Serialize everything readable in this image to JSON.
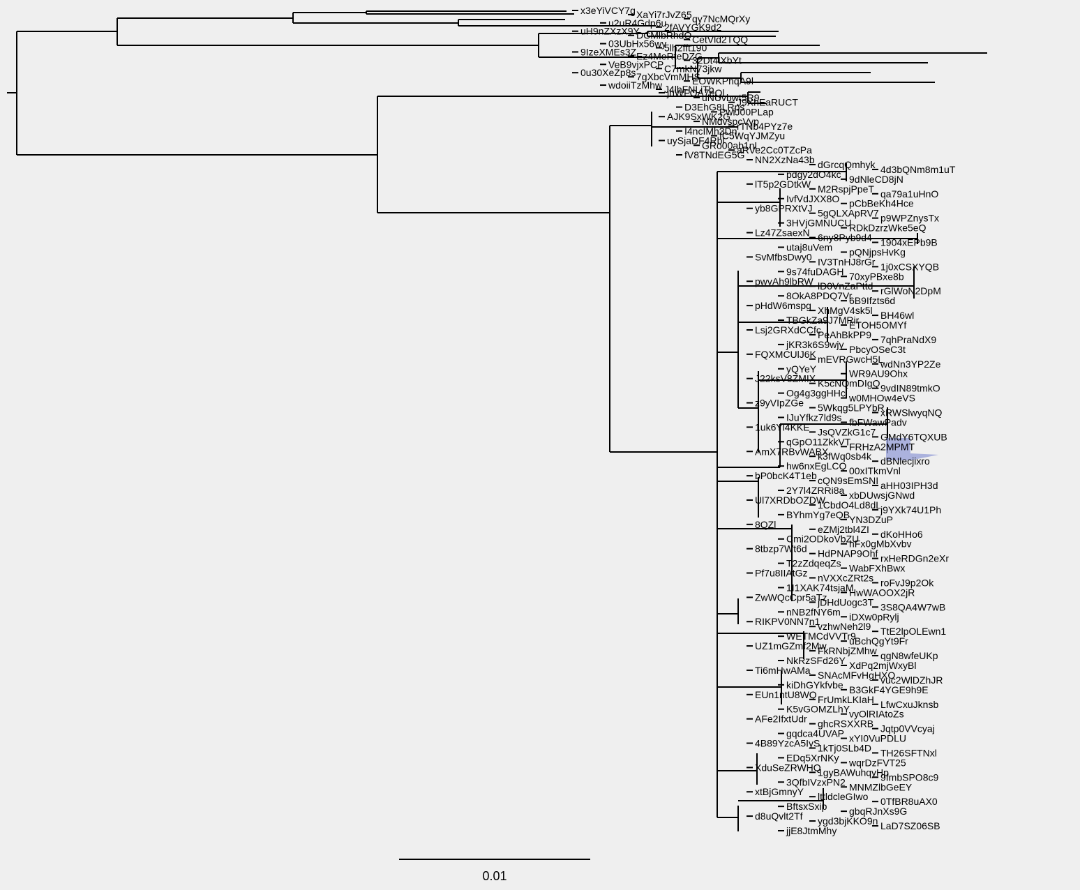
{
  "tree": {
    "scale_label": "0.01",
    "highlight_color": "#9aa3d8",
    "top_clade_labels": [
      "x3eYiVCY7g",
      "XaYi7rJvZ65",
      "qy7NcMQrXy",
      "u2uR4Gdp6u",
      "2fAVYGK9d2",
      "uH9nZXzX9Y",
      "DCMlbRhdQ",
      "CetVld2TQQ",
      "03UbHx56wy",
      "5lh2fft190",
      "9IzeXMEs3Z",
      "Ez4MeRteDZG",
      "32Dt4lXbYt",
      "VeB9vjxPCP",
      "C7mkN73jkw",
      "0u30XeZp8s",
      "7gXbcVmMHS",
      "EOWKPhqA9l",
      "wdoiiTzMhw",
      "J4lhFNLiTb"
    ],
    "middle_labels": [
      "jhWFQA7eQl",
      "uNUvbwt5R9",
      "J9XhEaRUCT",
      "D3EhG8LRps",
      "PwiJ00PLap",
      "AJK9SxWK2G",
      "NMdvspcVyp",
      "rTNb4PYz7e",
      "I4ncIMh3Dn",
      "fC5WqYJMZyu",
      "uySjaDF4Rbl",
      "GRo00ab1nL",
      "aRVe2Cc0TZcPa",
      "fV8TNdEG5G"
    ],
    "lower_labels": [
      "NN2XzNa43b",
      "dGrcqQmhyk",
      "4d3bQNm8m1uT",
      "pdgy2dO4kc",
      "9dNleCD8jN",
      "lT5p2GDtkW",
      "M2RspjPpeT",
      "qa79a1uHnO",
      "IvfVdJXX8O",
      "pCbBeKh4Hce",
      "yb8GPRXtVJ",
      "5gQLXApRV7",
      "p9WPZnysTx",
      "3HVjGMNUCU",
      "RDkDzrzWke5eQ",
      "Lz47ZsaexN",
      "6ny8Pyb9d4",
      "1904xEPb9B",
      "utaj8uVem",
      "pQNjpsHvKg",
      "SvMfbsDwy0",
      "IV3TnHJ8rGr",
      "1j0xCSXYQB",
      "9s74fuDAGH",
      "70xyPBxe8b",
      "pwvAh9lbRW",
      "lD0VnZaPttd",
      "rGlWoN2DpM",
      "8OkA8PDQ7Vr",
      "6B9Ifzts6d",
      "pHdW6mspg",
      "XhMgV4sk5l",
      "BH46wl",
      "TBGkZa9J7MRir",
      "ETOH5OMYf",
      "Lsj2GRXdCCfc",
      "PeAhBkPP9",
      "7qhPraNdX9",
      "jKR3k6S9wjy",
      "PbcyOSeC3t",
      "FQXMCUlJ6K",
      "mEVRGwcH5L",
      "wdNn3YP2Ze",
      "yQYeY",
      "WR9AU9Ohx",
      "J22ksV8ZMIX",
      "K5cNQmDIgQ",
      "9vdIN89tmkO",
      "Og4g3ggHHc",
      "w0MHOw4eVS",
      "z9yVIpZGe",
      "5Wkqg5LPYbR",
      "xRWSlwyqNQ",
      "IJuYfkz7ld9s",
      "fbFWawPadv",
      "1uk6Yl4KKE",
      "JsQVZkG1c7",
      "GMdY6TQXUB",
      "qGpO11ZkkVT",
      "FRHzA2MPMT",
      "AmX7RBvWABX",
      "k3fWq0sb4k",
      "dBNlecjixro",
      "hw6nxEgLCQ",
      "00xITkmVnl",
      "bP0bcK4T1eb",
      "cQN9sEmSNI",
      "aHH03IPH3d",
      "2Y7l4ZRRi8a",
      "xbDUwsjGNwd",
      "Ul7XRDbOZDW",
      "1CbdO4Ld8dL",
      "j9YXk74U1Ph",
      "BYhmYg7eQB",
      "YN3DZuP",
      "8QZl",
      "eZMj2tbl4ZI",
      "dKoHHo6",
      "Cmi2ODkoVbZU",
      "hFx0gMbXvbv",
      "8tbzp7Wt6d",
      "HdPNAP9Ohf",
      "rxHeRDGn2eXr",
      "T2zZdqeqZs",
      "WabFXhBwx",
      "Pf7u8IIAtGz",
      "nVXXcZRt2s",
      "roFvJ9p2Ok",
      "1I1XAK74tsjaM",
      "HwWAOOX2jR",
      "ZwWQcCpr5aTz",
      "jDHdUogc3T",
      "3S8QA4W7wB",
      "nNB2fNY6m",
      "iDXw0pRylj",
      "RIKPV0NN7n1",
      "vzhwNeh2l9",
      "TtE2lpOLEwn1",
      "WETMCdVVTr9",
      "uBchQgYt9Fr",
      "UZ1mGZmf2Mw",
      "FkRNbjZMhw",
      "qgN8wfeUKp",
      "NkRzSFd26Y",
      "XdPq2mjWxyBl",
      "Ti6mHwAMa",
      "SNAcMFvHgHXO",
      "vuc2WlDZhJR",
      "kiDhGYkfvbe",
      "B3GkF4YGE9h9E",
      "EUn1ntU8WQ",
      "FrUmkLKIaH",
      "LfwCxuJknsb",
      "K5vGOMZLhY",
      "vyOlRIAtoZs",
      "AFe2IfxtUdr",
      "ghcRSXXRB",
      "Jqtp0VVcyaj",
      "gqdca4UVAP",
      "xYI0VuPDLU",
      "4B89YzcA5IyS",
      "1kTj0SLb4D",
      "TH26SFTNxl",
      "EDq5XrNKy",
      "wqrDzFVT25",
      "XduSeZRWHQ",
      "1gyBAWuhqyHp",
      "9fmbSPO8c9",
      "3QfbIVzxPN2",
      "MNMZlbGeEY",
      "xtBjGmnyY",
      "lttldcleGIwo",
      "0TfBR8uAX0",
      "BftsxSxip",
      "gbqRJnXs9G",
      "d8uQvlt2Tf",
      "ygd3bjKKO9n",
      "LaD7SZ06SB",
      "jjE8JtmMhy"
    ]
  }
}
